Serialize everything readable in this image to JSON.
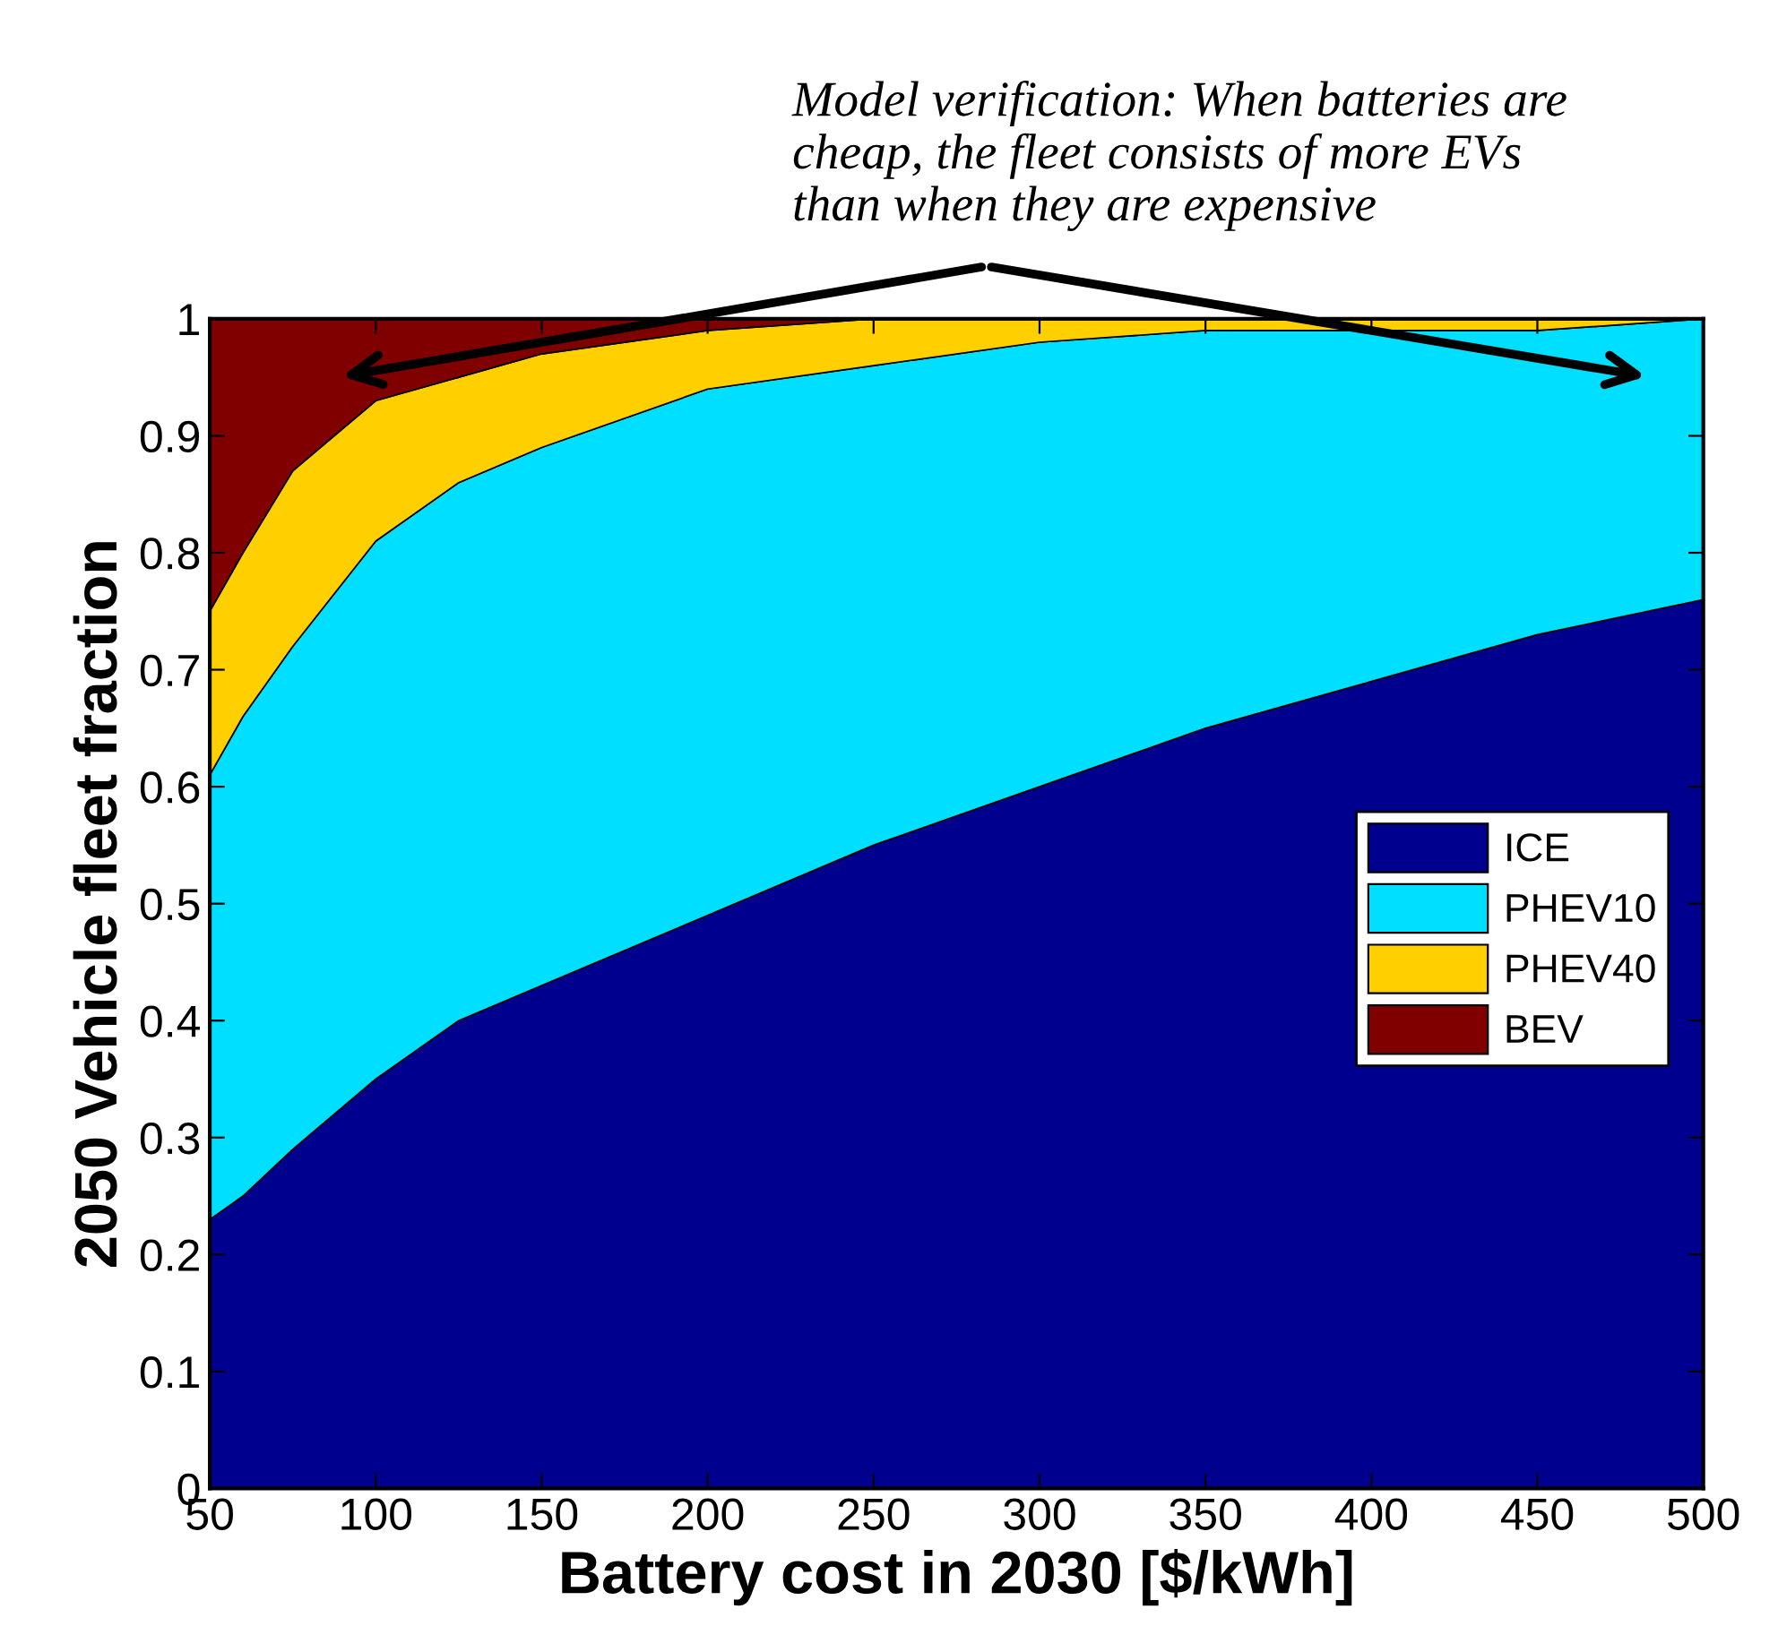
{
  "chart_data": {
    "type": "area",
    "stacked": true,
    "annotations": [
      "Model verification: When batteries are\ncheap, the fleet consists of more EVs\nthan when they are expensive"
    ],
    "xlabel": "Battery cost in 2030 [$/kWh]",
    "ylabel": "2050 Vehicle fleet fraction",
    "x": [
      50,
      60,
      75,
      100,
      125,
      150,
      200,
      250,
      300,
      350,
      400,
      450,
      500
    ],
    "series": [
      {
        "name": "ICE",
        "color": "#00008f",
        "values": [
          0.23,
          0.25,
          0.29,
          0.35,
          0.4,
          0.43,
          0.49,
          0.55,
          0.6,
          0.65,
          0.69,
          0.73,
          0.76
        ]
      },
      {
        "name": "PHEV10",
        "color": "#00dfff",
        "values": [
          0.38,
          0.41,
          0.43,
          0.46,
          0.46,
          0.46,
          0.45,
          0.41,
          0.38,
          0.34,
          0.3,
          0.26,
          0.24
        ]
      },
      {
        "name": "PHEV40",
        "color": "#ffcf00",
        "values": [
          0.14,
          0.14,
          0.15,
          0.12,
          0.09,
          0.08,
          0.05,
          0.04,
          0.02,
          0.01,
          0.01,
          0.01,
          0.0
        ]
      },
      {
        "name": "BEV",
        "color": "#800000",
        "values": [
          0.25,
          0.2,
          0.13,
          0.07,
          0.05,
          0.03,
          0.01,
          0.0,
          0.0,
          0.0,
          0.0,
          0.0,
          0.0
        ]
      }
    ],
    "xlim": [
      50,
      500
    ],
    "xticks": [
      50,
      100,
      150,
      200,
      250,
      300,
      350,
      400,
      450,
      500
    ],
    "ylim": [
      0,
      1
    ],
    "yticks": [
      0,
      0.1,
      0.2,
      0.3,
      0.4,
      0.5,
      0.6,
      0.7,
      0.8,
      0.9,
      1
    ],
    "legend": "center right",
    "grid": false
  }
}
